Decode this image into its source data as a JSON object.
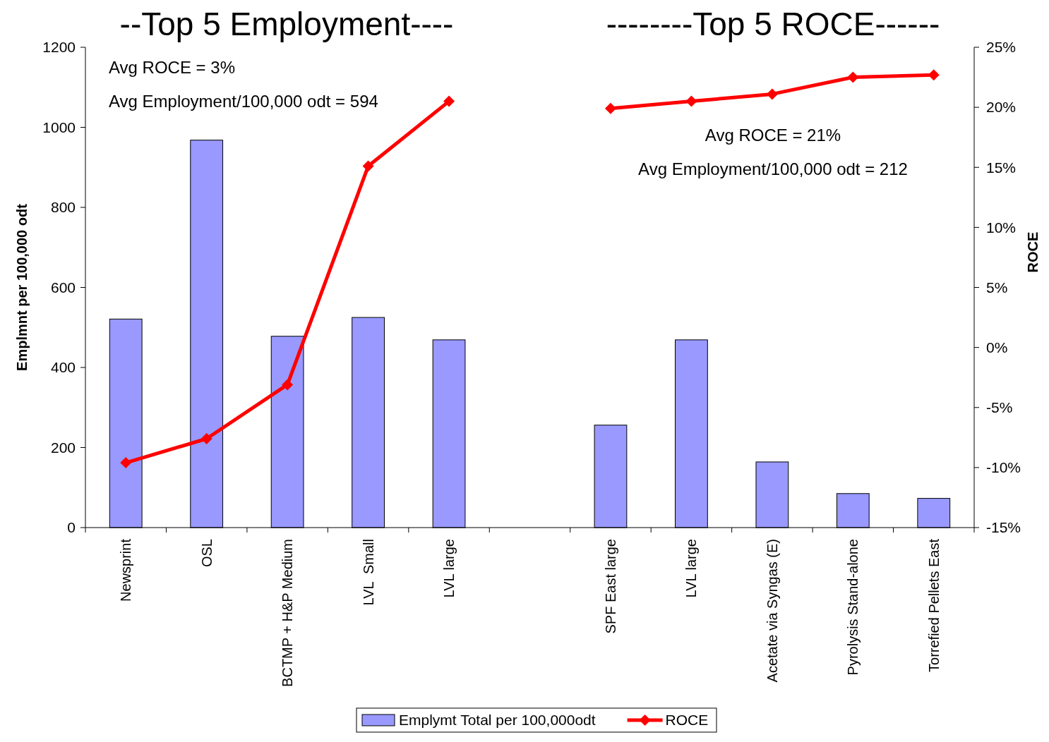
{
  "chart_data": {
    "type": "bar",
    "categories": [
      "Newsprint",
      "OSL",
      "BCTMP + H&P Medium",
      "LVL  Small",
      "LVL large",
      null,
      "SPF East large",
      "LVL large",
      "Acetate via Syngas (E)",
      "Pyrolysis Stand-alone",
      "Torrefied Pellets East"
    ],
    "series": [
      {
        "name": "Emplymt Total per 100,000odt",
        "color": "#9999ff",
        "values": [
          521,
          968,
          478,
          525,
          469,
          null,
          256,
          469,
          164,
          85,
          73
        ]
      },
      {
        "name": "ROCE",
        "type": "line",
        "axis": "y2",
        "color": "#ff0000",
        "marker": "diamond",
        "values": [
          -9.6,
          -7.6,
          -3.1,
          15.1,
          20.5,
          null,
          19.9,
          20.5,
          21.1,
          22.5,
          22.7
        ]
      }
    ],
    "ylabel": "Emplmnt per 100,000 odt",
    "y2label": "ROCE",
    "ylim": [
      0,
      1200
    ],
    "yticks": [
      0,
      200,
      400,
      600,
      800,
      1000,
      1200
    ],
    "y2lim": [
      -15,
      25
    ],
    "y2ticks": [
      {
        "value": -15,
        "label": "-15%"
      },
      {
        "value": -10,
        "label": "-10%"
      },
      {
        "value": -5,
        "label": "-5%"
      },
      {
        "value": 0,
        "label": "0%"
      },
      {
        "value": 5,
        "label": "5%"
      },
      {
        "value": 10,
        "label": "10%"
      },
      {
        "value": 15,
        "label": "15%"
      },
      {
        "value": 20,
        "label": "20%"
      },
      {
        "value": 25,
        "label": "25%"
      }
    ],
    "annotations": [
      "--Top 5 Employment----",
      "--------Top 5 ROCE------",
      "Avg ROCE = 3%",
      "Avg Employment/100,000 odt = 594",
      "Avg ROCE = 21%",
      "Avg Employment/100,000 odt = 212"
    ],
    "legend": "bottom",
    "grid": false
  }
}
